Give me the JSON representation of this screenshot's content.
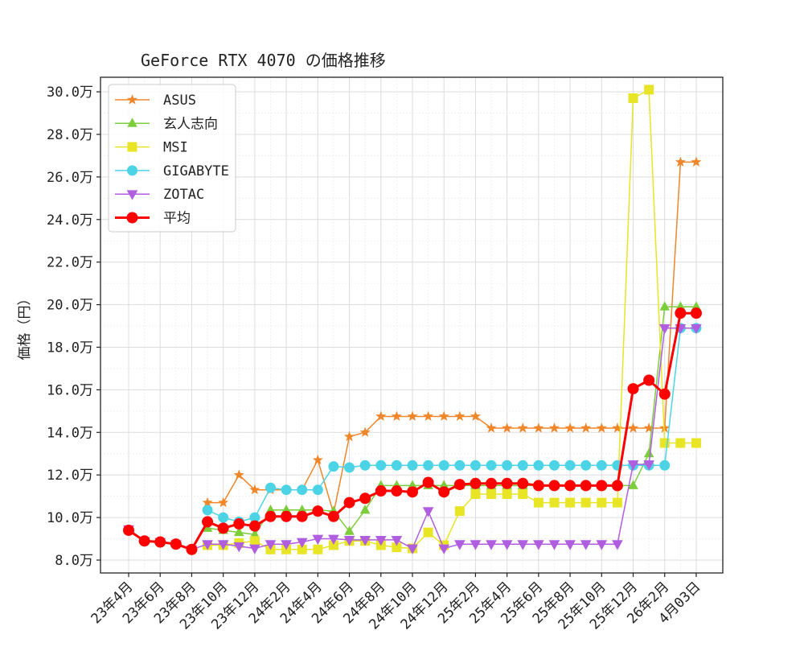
{
  "chart_data": {
    "type": "line",
    "title": "GeForce RTX 4070 の価格推移",
    "xlabel": "",
    "ylabel": "価格（円）",
    "ylim": [
      7.6,
      30.5
    ],
    "y_unit_suffix": "万",
    "yticks": [
      8.0,
      10.0,
      12.0,
      14.0,
      16.0,
      18.0,
      20.0,
      22.0,
      24.0,
      26.0,
      28.0,
      30.0
    ],
    "ytick_labels": [
      "8.0万",
      "10.0万",
      "12.0万",
      "14.0万",
      "16.0万",
      "18.0万",
      "20.0万",
      "22.0万",
      "24.0万",
      "26.0万",
      "28.0万",
      "30.0万"
    ],
    "xtick_positions": [
      0,
      2,
      4,
      6,
      8,
      10,
      12,
      14,
      16,
      18,
      20,
      22,
      24,
      26,
      28,
      30,
      32,
      34,
      36
    ],
    "xtick_labels": [
      "23年4月",
      "23年6月",
      "23年8月",
      "23年10月",
      "23年12月",
      "24年2月",
      "24年4月",
      "24年6月",
      "24年8月",
      "24年10月",
      "24年12月",
      "25年2月",
      "25年4月",
      "25年6月",
      "25年8月",
      "25年10月",
      "25年12月",
      "26年2月",
      "4月03日"
    ],
    "grid": true,
    "legend_position": "upper left",
    "x": [
      0,
      1,
      2,
      3,
      4,
      5,
      6,
      7,
      8,
      9,
      10,
      11,
      12,
      13,
      14,
      15,
      16,
      17,
      18,
      19,
      20,
      21,
      22,
      23,
      24,
      25,
      26,
      27,
      28,
      29,
      30,
      31,
      32,
      33,
      34,
      35,
      36
    ],
    "series": [
      {
        "name": "ASUS",
        "color": "#f0862a",
        "marker": "star",
        "linewidth": 1.5,
        "values": [
          null,
          null,
          null,
          null,
          null,
          10.7,
          10.7,
          12.0,
          11.3,
          11.3,
          11.3,
          11.3,
          12.7,
          10.2,
          13.8,
          14.0,
          14.75,
          14.75,
          14.75,
          14.75,
          14.75,
          14.75,
          14.75,
          14.2,
          14.2,
          14.2,
          14.2,
          14.2,
          14.2,
          14.2,
          14.2,
          14.2,
          14.2,
          14.2,
          14.2,
          26.7,
          26.7
        ]
      },
      {
        "name": "玄人志向",
        "color": "#7ccd3a",
        "marker": "triangle-up",
        "linewidth": 1.5,
        "values": [
          null,
          null,
          null,
          null,
          null,
          9.5,
          9.4,
          9.3,
          9.2,
          10.35,
          10.35,
          10.35,
          10.35,
          10.3,
          9.35,
          10.35,
          11.5,
          11.5,
          11.5,
          11.5,
          11.5,
          11.5,
          11.5,
          11.5,
          11.5,
          11.5,
          11.5,
          11.5,
          11.5,
          11.5,
          11.5,
          11.5,
          11.5,
          13.0,
          19.9,
          19.9,
          19.9
        ]
      },
      {
        "name": "MSI",
        "color": "#e8e526",
        "marker": "square",
        "linewidth": 1.5,
        "values": [
          null,
          null,
          null,
          null,
          null,
          8.7,
          8.7,
          8.8,
          8.9,
          8.5,
          8.5,
          8.5,
          8.5,
          8.7,
          8.9,
          8.9,
          8.7,
          8.6,
          8.55,
          9.3,
          8.7,
          10.3,
          11.1,
          11.1,
          11.1,
          11.1,
          10.7,
          10.7,
          10.7,
          10.7,
          10.7,
          10.7,
          29.7,
          30.1,
          13.5,
          13.5,
          13.5
        ]
      },
      {
        "name": "GIGABYTE",
        "color": "#4cd4e6",
        "marker": "circle",
        "linewidth": 1.5,
        "values": [
          null,
          null,
          null,
          null,
          null,
          10.35,
          10.0,
          9.8,
          10.0,
          11.4,
          11.3,
          11.3,
          11.3,
          12.4,
          12.35,
          12.45,
          12.45,
          12.45,
          12.45,
          12.45,
          12.45,
          12.45,
          12.45,
          12.45,
          12.45,
          12.45,
          12.45,
          12.45,
          12.45,
          12.45,
          12.45,
          12.45,
          12.45,
          12.45,
          12.45,
          18.9,
          18.9
        ]
      },
      {
        "name": "ZOTAC",
        "color": "#b05de0",
        "marker": "triangle-down",
        "linewidth": 1.5,
        "values": [
          9.45,
          8.9,
          8.85,
          8.75,
          8.5,
          8.75,
          8.75,
          8.65,
          8.55,
          8.75,
          8.75,
          8.85,
          9.0,
          9.0,
          8.95,
          8.95,
          8.95,
          8.95,
          8.55,
          10.3,
          8.55,
          8.75,
          8.75,
          8.75,
          8.75,
          8.75,
          8.75,
          8.75,
          8.75,
          8.75,
          8.75,
          8.75,
          12.5,
          12.5,
          18.9,
          18.9,
          18.9
        ]
      },
      {
        "name": "平均",
        "color": "#ff0000",
        "marker": "circle",
        "linewidth": 3,
        "values": [
          9.4,
          8.9,
          8.85,
          8.75,
          8.5,
          9.8,
          9.5,
          9.7,
          9.6,
          10.05,
          10.05,
          10.05,
          10.3,
          10.05,
          10.7,
          10.9,
          11.25,
          11.25,
          11.2,
          11.65,
          11.2,
          11.55,
          11.6,
          11.6,
          11.6,
          11.6,
          11.5,
          11.5,
          11.5,
          11.5,
          11.5,
          11.5,
          16.05,
          16.45,
          15.8,
          19.6,
          19.6
        ]
      }
    ]
  }
}
